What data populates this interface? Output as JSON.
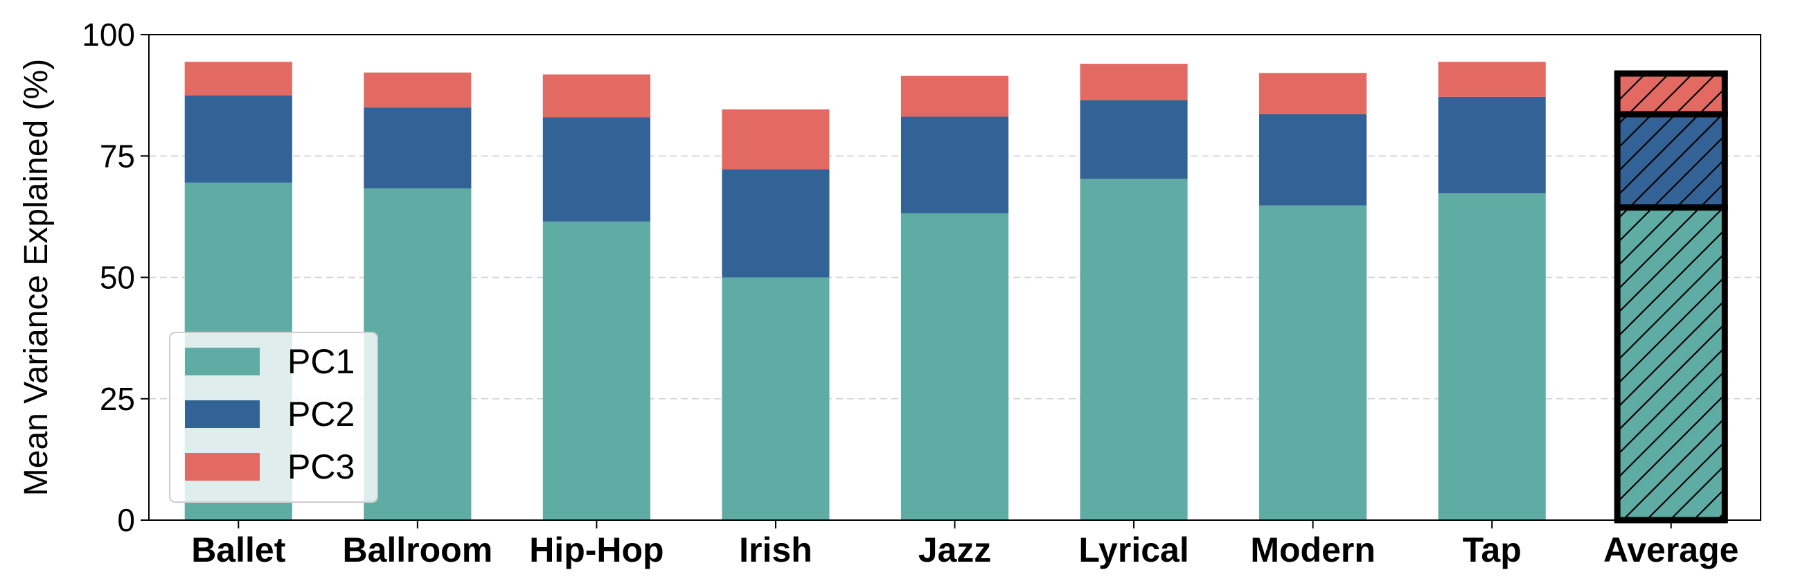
{
  "chart_data": {
    "type": "bar",
    "stacked": true,
    "title": "",
    "xlabel": "",
    "ylabel": "Mean Variance Explained (%)",
    "ylim": [
      0,
      100
    ],
    "yticks": [
      "0",
      "25",
      "50",
      "75",
      "100"
    ],
    "grid": "horizontal dashed",
    "legend_position": "bottom-left",
    "categories": [
      "Ballet",
      "Ballroom",
      "Hip-Hop",
      "Irish",
      "Jazz",
      "Lyrical",
      "Modern",
      "Tap",
      "Average"
    ],
    "highlighted_category": "Average",
    "series": [
      {
        "name": "PC1",
        "color": "#5eaca3",
        "values": [
          69.5,
          68.3,
          61.5,
          50.0,
          63.2,
          70.3,
          64.8,
          67.3,
          64.4
        ]
      },
      {
        "name": "PC2",
        "color": "#336396",
        "values": [
          18.0,
          16.7,
          21.5,
          22.3,
          19.9,
          16.2,
          18.8,
          19.9,
          19.2
        ]
      },
      {
        "name": "PC3",
        "color": "#e26a63",
        "values": [
          6.9,
          7.2,
          8.8,
          12.3,
          8.4,
          7.5,
          8.5,
          7.2,
          8.4
        ]
      }
    ]
  }
}
